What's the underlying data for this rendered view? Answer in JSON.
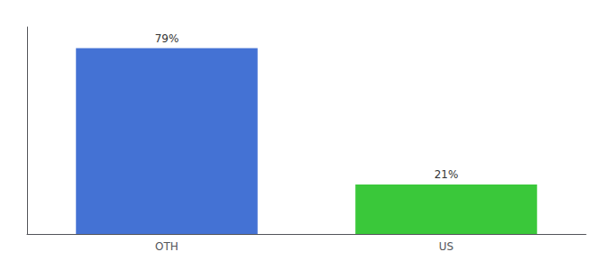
{
  "chart_data": {
    "type": "bar",
    "categories": [
      "OTH",
      "US"
    ],
    "values": [
      79,
      21
    ],
    "value_labels": [
      "79%",
      "21%"
    ],
    "colors": [
      "#4472d4",
      "#3ac83a"
    ],
    "ylim": [
      0,
      88
    ],
    "data_labels": true,
    "tick_labels": "x",
    "grid": false
  }
}
